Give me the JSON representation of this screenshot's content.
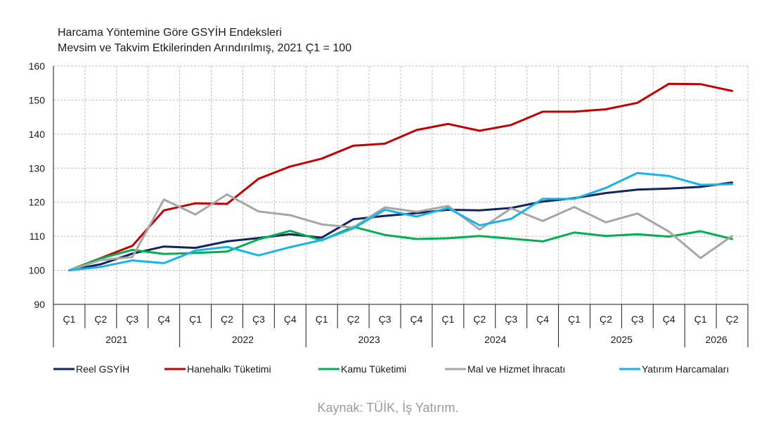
{
  "chart_data": {
    "type": "line",
    "title": "Harcama Yöntemine Göre GSYİH Endeksleri",
    "subtitle": "Mevsim ve Takvim Etkilerinden Arındırılmış, 2021 Ç1 = 100",
    "ylim": [
      90,
      160
    ],
    "yticks": [
      90,
      100,
      110,
      120,
      130,
      140,
      150,
      160
    ],
    "grid": true,
    "legend_position": "bottom",
    "categories": [
      "Ç1",
      "Ç2",
      "Ç3",
      "Ç4",
      "Ç1",
      "Ç2",
      "Ç3",
      "Ç4",
      "Ç1",
      "Ç2",
      "Ç3",
      "Ç4",
      "Ç1",
      "Ç2",
      "Ç3",
      "Ç4",
      "Ç1",
      "Ç2",
      "Ç3",
      "Ç4",
      "Ç1",
      "Ç2"
    ],
    "years": [
      {
        "label": "2021",
        "count": 4
      },
      {
        "label": "2022",
        "count": 4
      },
      {
        "label": "2023",
        "count": 4
      },
      {
        "label": "2024",
        "count": 4
      },
      {
        "label": "2025",
        "count": 4
      },
      {
        "label": "2026",
        "count": 2
      }
    ],
    "series": [
      {
        "name": "Reel GSYİH",
        "color": "#13265c",
        "values": [
          100,
          101.8,
          104.9,
          107.0,
          106.6,
          108.5,
          109.5,
          110.6,
          109.6,
          115.0,
          116.0,
          116.8,
          117.8,
          117.6,
          118.3,
          120.2,
          121.2,
          122.7,
          123.7,
          124.0,
          124.5,
          125.8
        ]
      },
      {
        "name": "Hanehalkı Tüketimi",
        "color": "#c00000",
        "values": [
          100,
          103.6,
          107.2,
          117.6,
          119.7,
          119.5,
          126.9,
          130.5,
          132.8,
          136.6,
          137.2,
          141.2,
          143.0,
          141.0,
          142.7,
          146.6,
          146.6,
          147.3,
          149.2,
          154.8,
          154.7,
          152.7
        ]
      },
      {
        "name": "Kamu Tüketimi",
        "color": "#00b050",
        "values": [
          100,
          103.5,
          106.0,
          104.8,
          105.1,
          105.5,
          109.1,
          111.6,
          108.8,
          112.8,
          110.4,
          109.2,
          109.4,
          110.1,
          109.3,
          108.5,
          111.1,
          110.1,
          110.6,
          109.9,
          111.5,
          109.2
        ]
      },
      {
        "name": "Mal ve Hizmet İhracatı",
        "color": "#a6a6a6",
        "values": [
          100,
          103.0,
          103.9,
          120.8,
          116.4,
          122.3,
          117.3,
          116.2,
          113.5,
          112.6,
          118.5,
          117.2,
          118.9,
          112.0,
          118.2,
          114.5,
          118.6,
          114.1,
          116.7,
          111.4,
          103.6,
          110.1
        ]
      },
      {
        "name": "Yatırım Harcamaları",
        "color": "#1ab2e8",
        "values": [
          100,
          101.0,
          102.9,
          102.1,
          105.8,
          106.9,
          104.4,
          106.8,
          108.9,
          112.3,
          117.8,
          115.8,
          118.3,
          113.2,
          115.1,
          121.0,
          121.0,
          124.2,
          128.6,
          127.7,
          125.1,
          125.3
        ]
      }
    ]
  },
  "source": "Kaynak: TÜİK, İş Yatırım."
}
